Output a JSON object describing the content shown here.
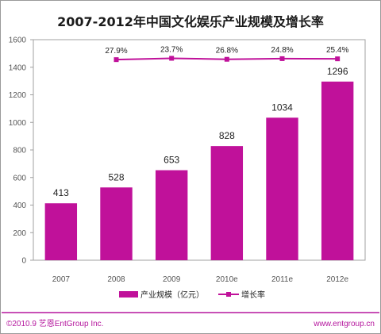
{
  "chart_data": {
    "type": "bar",
    "title": "2007-2012年中国文化娱乐产业规模及增长率",
    "categories": [
      "2007",
      "2008",
      "2009",
      "2010e",
      "2011e",
      "2012e"
    ],
    "ylim": [
      0,
      1600
    ],
    "yticks": [
      0,
      200,
      400,
      600,
      800,
      1000,
      1200,
      1400,
      1600
    ],
    "grid": false,
    "legend_position": "bottom",
    "series": [
      {
        "name": "产业规模（亿元）",
        "type": "bar",
        "values": [
          413,
          528,
          653,
          828,
          1034,
          1296
        ],
        "labels": [
          "413",
          "528",
          "653",
          "828",
          "1034",
          "1296"
        ],
        "color": "#c0119a"
      },
      {
        "name": "增长率",
        "type": "line",
        "values": [
          null,
          27.9,
          23.7,
          26.8,
          24.8,
          25.4
        ],
        "labels": [
          "",
          "27.9%",
          "23.7%",
          "26.8%",
          "24.8%",
          "25.4%"
        ],
        "color": "#c0119a"
      }
    ]
  },
  "footer": {
    "left": "©2010.9 艺恩EntGroup Inc.",
    "right": "www.entgroup.cn"
  }
}
